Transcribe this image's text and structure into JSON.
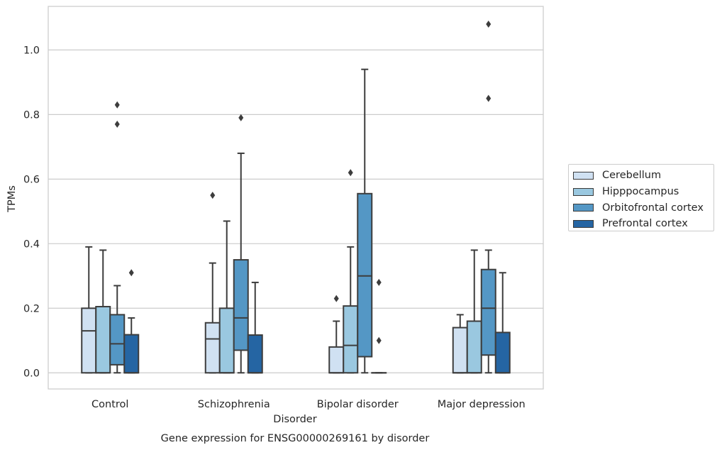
{
  "chart_data": {
    "type": "box",
    "title": "Gene expression for ENSG00000269161 by disorder",
    "xlabel": "Disorder",
    "ylabel": "TPMs",
    "ylim": [
      -0.05,
      1.135
    ],
    "yticks": [
      "0.0",
      "0.2",
      "0.4",
      "0.6",
      "0.8",
      "1.0"
    ],
    "categories": [
      "Control",
      "Schizophrenia",
      "Bipolar disorder",
      "Major depression"
    ],
    "grid": "horizontal",
    "legend_position": "right",
    "series": [
      {
        "name": "Cerebellum",
        "color": "#d0e1f2",
        "boxes": [
          {
            "min": 0.0,
            "q1": 0.0,
            "median": 0.13,
            "q3": 0.2,
            "max": 0.39,
            "outliers": []
          },
          {
            "min": 0.0,
            "q1": 0.0,
            "median": 0.105,
            "q3": 0.155,
            "max": 0.34,
            "outliers": [
              0.55
            ]
          },
          {
            "min": 0.0,
            "q1": 0.0,
            "median": 0.0,
            "q3": 0.08,
            "max": 0.16,
            "outliers": [
              0.23
            ]
          },
          {
            "min": 0.0,
            "q1": 0.0,
            "median": 0.0,
            "q3": 0.14,
            "max": 0.18,
            "outliers": []
          }
        ]
      },
      {
        "name": "Hipppocampus",
        "color": "#9ac8e0",
        "boxes": [
          {
            "min": 0.0,
            "q1": 0.0,
            "median": 0.0,
            "q3": 0.205,
            "max": 0.38,
            "outliers": []
          },
          {
            "min": 0.0,
            "q1": 0.0,
            "median": 0.0,
            "q3": 0.2,
            "max": 0.47,
            "outliers": []
          },
          {
            "min": 0.0,
            "q1": 0.0,
            "median": 0.085,
            "q3": 0.207,
            "max": 0.39,
            "outliers": [
              0.62
            ]
          },
          {
            "min": 0.0,
            "q1": 0.0,
            "median": 0.0,
            "q3": 0.16,
            "max": 0.38,
            "outliers": []
          }
        ]
      },
      {
        "name": "Orbitofrontal cortex",
        "color": "#5497c5",
        "boxes": [
          {
            "min": 0.0,
            "q1": 0.025,
            "median": 0.09,
            "q3": 0.18,
            "max": 0.27,
            "outliers": [
              0.77,
              0.83
            ]
          },
          {
            "min": 0.0,
            "q1": 0.07,
            "median": 0.17,
            "q3": 0.35,
            "max": 0.68,
            "outliers": [
              0.79
            ]
          },
          {
            "min": 0.0,
            "q1": 0.05,
            "median": 0.3,
            "q3": 0.555,
            "max": 0.94,
            "outliers": []
          },
          {
            "min": 0.0,
            "q1": 0.055,
            "median": 0.2,
            "q3": 0.32,
            "max": 0.38,
            "outliers": [
              0.85,
              1.08
            ]
          }
        ]
      },
      {
        "name": "Prefrontal cortex",
        "color": "#2565a3",
        "boxes": [
          {
            "min": 0.0,
            "q1": 0.0,
            "median": 0.0,
            "q3": 0.118,
            "max": 0.17,
            "outliers": [
              0.31
            ]
          },
          {
            "min": 0.0,
            "q1": 0.0,
            "median": 0.0,
            "q3": 0.117,
            "max": 0.28,
            "outliers": []
          },
          {
            "min": 0.0,
            "q1": 0.0,
            "median": 0.0,
            "q3": 0.0,
            "max": 0.0,
            "outliers": [
              0.1,
              0.28
            ]
          },
          {
            "min": 0.0,
            "q1": 0.0,
            "median": 0.0,
            "q3": 0.125,
            "max": 0.31,
            "outliers": []
          }
        ]
      }
    ]
  }
}
